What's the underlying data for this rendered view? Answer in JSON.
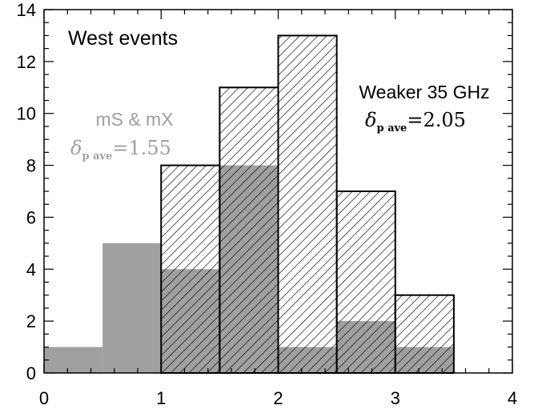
{
  "chart_data": {
    "type": "bar",
    "title": "",
    "xlabel": "",
    "ylabel": "",
    "xlim": [
      0,
      4
    ],
    "ylim": [
      0,
      14
    ],
    "x_ticks": [
      0,
      1,
      2,
      3,
      4
    ],
    "y_ticks": [
      0,
      2,
      4,
      6,
      8,
      10,
      12,
      14
    ],
    "bin_edges": [
      0,
      0.5,
      1.0,
      1.5,
      2.0,
      2.5,
      3.0,
      3.5,
      4.0
    ],
    "series": [
      {
        "name": "Weaker 35 GHz",
        "style": "hatched",
        "values": [
          0,
          0,
          8,
          11,
          13,
          7,
          3,
          0
        ]
      },
      {
        "name": "mS & mX",
        "style": "gray-filled",
        "color": "#a0a0a0",
        "values": [
          1,
          5,
          4,
          8,
          1,
          2,
          1,
          0
        ]
      }
    ],
    "annotations": {
      "panel_label": "West events",
      "gray_label": "mS & mX",
      "gray_delta_symbol": "δ",
      "gray_delta_subscript": "p ave",
      "gray_delta_value": "=1.55",
      "hatched_label": "Weaker 35 GHz",
      "hatched_delta_symbol": "δ",
      "hatched_delta_subscript": "p ave",
      "hatched_delta_value": "=2.05"
    },
    "grid": false
  },
  "colors": {
    "gray_fill": "#a0a0a0",
    "gray_text": "#a0a0a0",
    "axes": "#000000"
  }
}
